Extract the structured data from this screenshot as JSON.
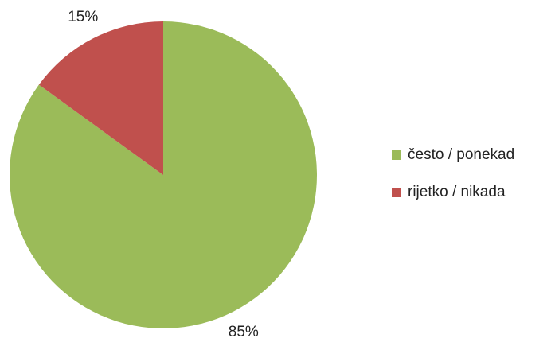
{
  "chart_data": {
    "type": "pie",
    "categories": [
      "često / ponekad",
      "rijetko / nikada"
    ],
    "values": [
      85,
      15
    ],
    "value_labels": [
      "85%",
      "15%"
    ],
    "colors": [
      "#9bbb59",
      "#c0504d"
    ],
    "legend": "right"
  }
}
